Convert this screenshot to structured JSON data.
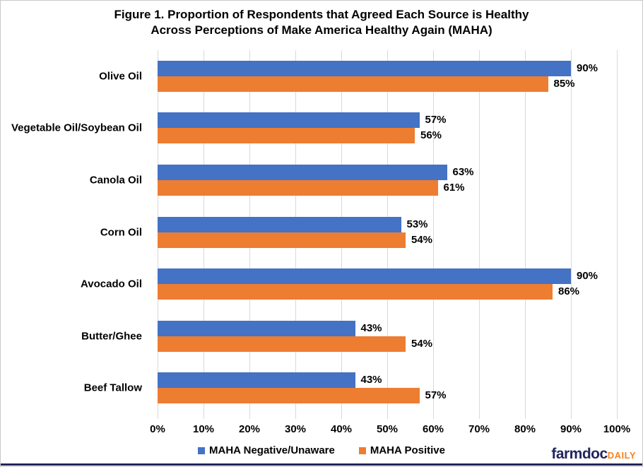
{
  "title": {
    "line1": "Figure 1. Proportion of Respondents that Agreed Each Source is Healthy",
    "line2": "Across Perceptions of Make America Healthy Again (MAHA)"
  },
  "chart_data": {
    "type": "bar",
    "orientation": "horizontal",
    "title": "Figure 1. Proportion of Respondents that Agreed Each Source is Healthy Across Perceptions of Make America Healthy Again (MAHA)",
    "categories": [
      "Olive Oil",
      "Vegetable Oil/Soybean Oil",
      "Canola Oil",
      "Corn Oil",
      "Avocado Oil",
      "Butter/Ghee",
      "Beef Tallow"
    ],
    "series": [
      {
        "name": "MAHA Negative/Unaware",
        "color": "#4472C4",
        "values": [
          90,
          57,
          63,
          53,
          90,
          43,
          43
        ]
      },
      {
        "name": "MAHA Positive",
        "color": "#ED7D31",
        "values": [
          85,
          56,
          61,
          54,
          86,
          54,
          57
        ]
      }
    ],
    "data_label_suffix": "%",
    "xlim": [
      0,
      100
    ],
    "x_ticks": [
      "0%",
      "10%",
      "20%",
      "30%",
      "40%",
      "50%",
      "60%",
      "70%",
      "80%",
      "90%",
      "100%"
    ],
    "grid": true,
    "gridline_color": "#d9d9d9",
    "legend_position": "bottom"
  },
  "branding": {
    "logo_main": "farmdoc",
    "logo_suffix": "DAILY",
    "logo_main_color": "#21265C",
    "logo_suffix_color": "#F5821F",
    "rule_color": "#21265C"
  }
}
